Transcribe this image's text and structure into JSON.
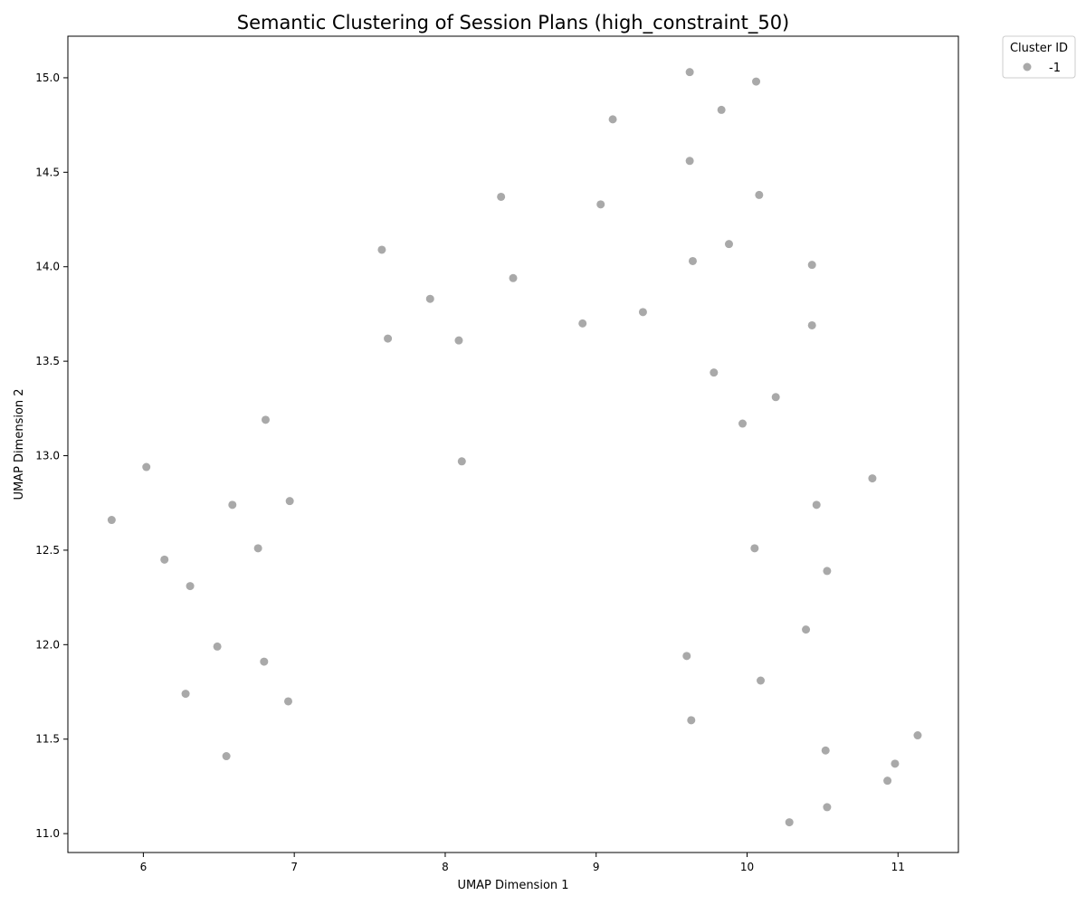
{
  "chart_data": {
    "type": "scatter",
    "title": "Semantic Clustering of Session Plans (high_constraint_50)",
    "xlabel": "UMAP Dimension 1",
    "ylabel": "UMAP Dimension 2",
    "xlim": [
      5.5,
      11.4
    ],
    "ylim": [
      10.9,
      15.22
    ],
    "x_ticks": [
      6,
      7,
      8,
      9,
      10,
      11
    ],
    "y_ticks": [
      11.0,
      11.5,
      12.0,
      12.5,
      13.0,
      13.5,
      14.0,
      14.5,
      15.0
    ],
    "grid": false,
    "legend": {
      "title": "Cluster ID",
      "placement": "outside-top-right",
      "entries": [
        {
          "label": "-1",
          "color": "#a9a9a9"
        }
      ]
    },
    "series": [
      {
        "name": "-1",
        "color": "#a9a9a9",
        "points": [
          [
            9.62,
            15.03
          ],
          [
            10.06,
            14.98
          ],
          [
            9.83,
            14.83
          ],
          [
            9.11,
            14.78
          ],
          [
            9.62,
            14.56
          ],
          [
            8.37,
            14.37
          ],
          [
            9.03,
            14.33
          ],
          [
            10.08,
            14.38
          ],
          [
            7.58,
            14.09
          ],
          [
            9.88,
            14.12
          ],
          [
            9.64,
            14.03
          ],
          [
            10.43,
            14.01
          ],
          [
            8.45,
            13.94
          ],
          [
            7.9,
            13.83
          ],
          [
            8.91,
            13.7
          ],
          [
            9.31,
            13.76
          ],
          [
            10.43,
            13.69
          ],
          [
            7.62,
            13.62
          ],
          [
            8.09,
            13.61
          ],
          [
            9.78,
            13.44
          ],
          [
            10.19,
            13.31
          ],
          [
            6.81,
            13.19
          ],
          [
            9.97,
            13.17
          ],
          [
            6.02,
            12.94
          ],
          [
            8.11,
            12.97
          ],
          [
            10.83,
            12.88
          ],
          [
            6.59,
            12.74
          ],
          [
            6.97,
            12.76
          ],
          [
            10.46,
            12.74
          ],
          [
            5.79,
            12.66
          ],
          [
            6.76,
            12.51
          ],
          [
            10.05,
            12.51
          ],
          [
            6.14,
            12.45
          ],
          [
            10.53,
            12.39
          ],
          [
            6.31,
            12.31
          ],
          [
            10.39,
            12.08
          ],
          [
            6.49,
            11.99
          ],
          [
            6.8,
            11.91
          ],
          [
            9.6,
            11.94
          ],
          [
            10.09,
            11.81
          ],
          [
            6.28,
            11.74
          ],
          [
            6.96,
            11.7
          ],
          [
            9.63,
            11.6
          ],
          [
            11.13,
            11.52
          ],
          [
            6.55,
            11.41
          ],
          [
            10.52,
            11.44
          ],
          [
            10.98,
            11.37
          ],
          [
            10.93,
            11.28
          ],
          [
            10.53,
            11.14
          ],
          [
            10.28,
            11.06
          ]
        ]
      }
    ]
  }
}
